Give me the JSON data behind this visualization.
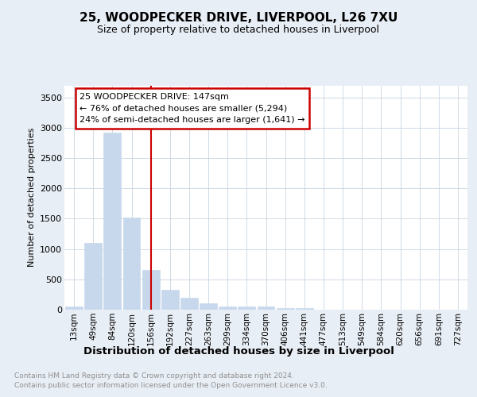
{
  "title": "25, WOODPECKER DRIVE, LIVERPOOL, L26 7XU",
  "subtitle": "Size of property relative to detached houses in Liverpool",
  "xlabel": "Distribution of detached houses by size in Liverpool",
  "ylabel": "Number of detached properties",
  "annotation_line1": "25 WOODPECKER DRIVE: 147sqm",
  "annotation_line2": "← 76% of detached houses are smaller (5,294)",
  "annotation_line3": "24% of semi-detached houses are larger (1,641) →",
  "property_line_index": 4,
  "bar_color": "#c8d8ec",
  "line_color": "#cc0000",
  "box_edge_color": "#cc0000",
  "categories": [
    "13sqm",
    "49sqm",
    "84sqm",
    "120sqm",
    "156sqm",
    "192sqm",
    "227sqm",
    "263sqm",
    "299sqm",
    "334sqm",
    "370sqm",
    "406sqm",
    "441sqm",
    "477sqm",
    "513sqm",
    "549sqm",
    "584sqm",
    "620sqm",
    "656sqm",
    "691sqm",
    "727sqm"
  ],
  "values": [
    50,
    1100,
    2920,
    1520,
    650,
    330,
    200,
    100,
    50,
    50,
    50,
    20,
    20,
    5,
    0,
    0,
    0,
    0,
    0,
    0,
    0
  ],
  "ylim": [
    0,
    3700
  ],
  "yticks": [
    0,
    500,
    1000,
    1500,
    2000,
    2500,
    3000,
    3500
  ],
  "footer_line1": "Contains HM Land Registry data © Crown copyright and database right 2024.",
  "footer_line2": "Contains public sector information licensed under the Open Government Licence v3.0.",
  "bg_color": "#e8eef5",
  "plot_bg_color": "#ffffff",
  "grid_color": "#c8d4e0"
}
